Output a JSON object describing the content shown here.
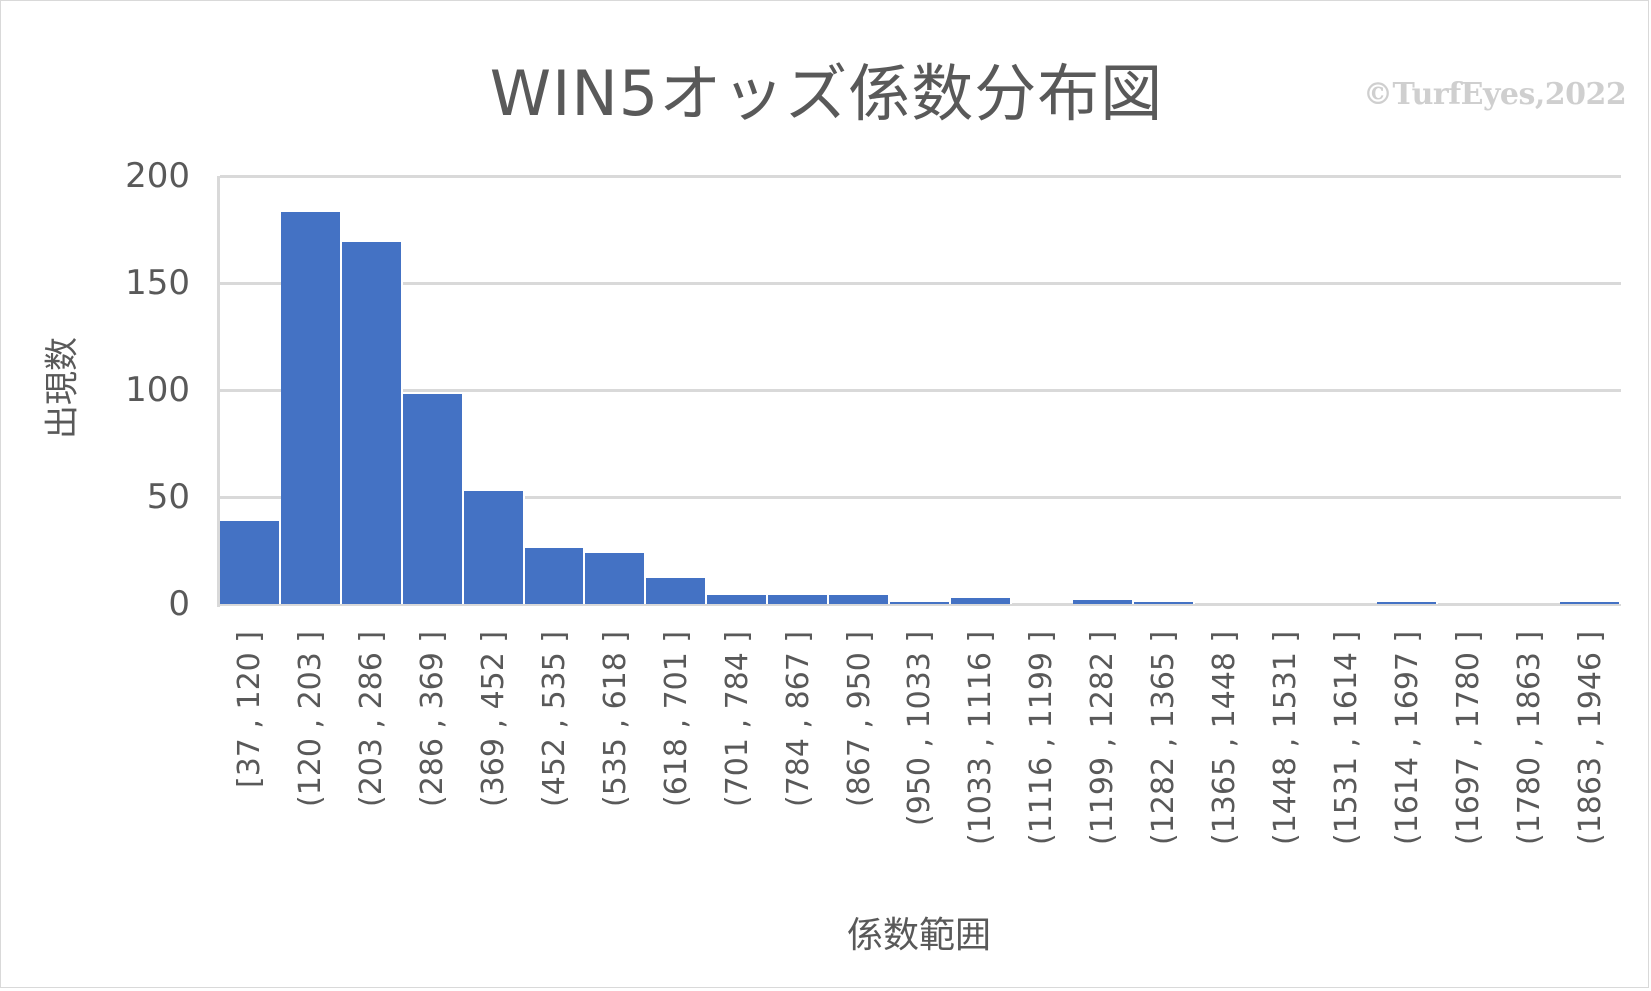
{
  "chart_data": {
    "type": "bar",
    "title": "WIN5オッズ係数分布図",
    "watermark": "©TurfEyes,2022",
    "xlabel": "係数範囲",
    "ylabel": "出現数",
    "ylim": [
      0,
      200
    ],
    "yticks": [
      "0",
      "50",
      "100",
      "150",
      "200"
    ],
    "grid": true,
    "legend": null,
    "bar_color": "#4472c4",
    "categories": [
      "[37 , 120 ]",
      "(120 , 203 ]",
      "(203 , 286 ]",
      "(286 , 369 ]",
      "(369 , 452 ]",
      "(452 , 535 ]",
      "(535 , 618 ]",
      "(618 , 701 ]",
      "(701 , 784 ]",
      "(784 , 867 ]",
      "(867 , 950 ]",
      "(950 , 1033 ]",
      "(1033 , 1116 ]",
      "(1116 , 1199 ]",
      "(1199 , 1282 ]",
      "(1282 , 1365 ]",
      "(1365 , 1448 ]",
      "(1448 , 1531 ]",
      "(1531 , 1614 ]",
      "(1614 , 1697 ]",
      "(1697 , 1780 ]",
      "(1780 , 1863 ]",
      "(1863 , 1946 ]"
    ],
    "values": [
      39,
      183,
      169,
      98,
      53,
      26,
      24,
      12,
      4,
      4,
      4,
      1,
      3,
      0,
      2,
      1,
      0,
      0,
      0,
      1,
      0,
      0,
      1
    ]
  }
}
